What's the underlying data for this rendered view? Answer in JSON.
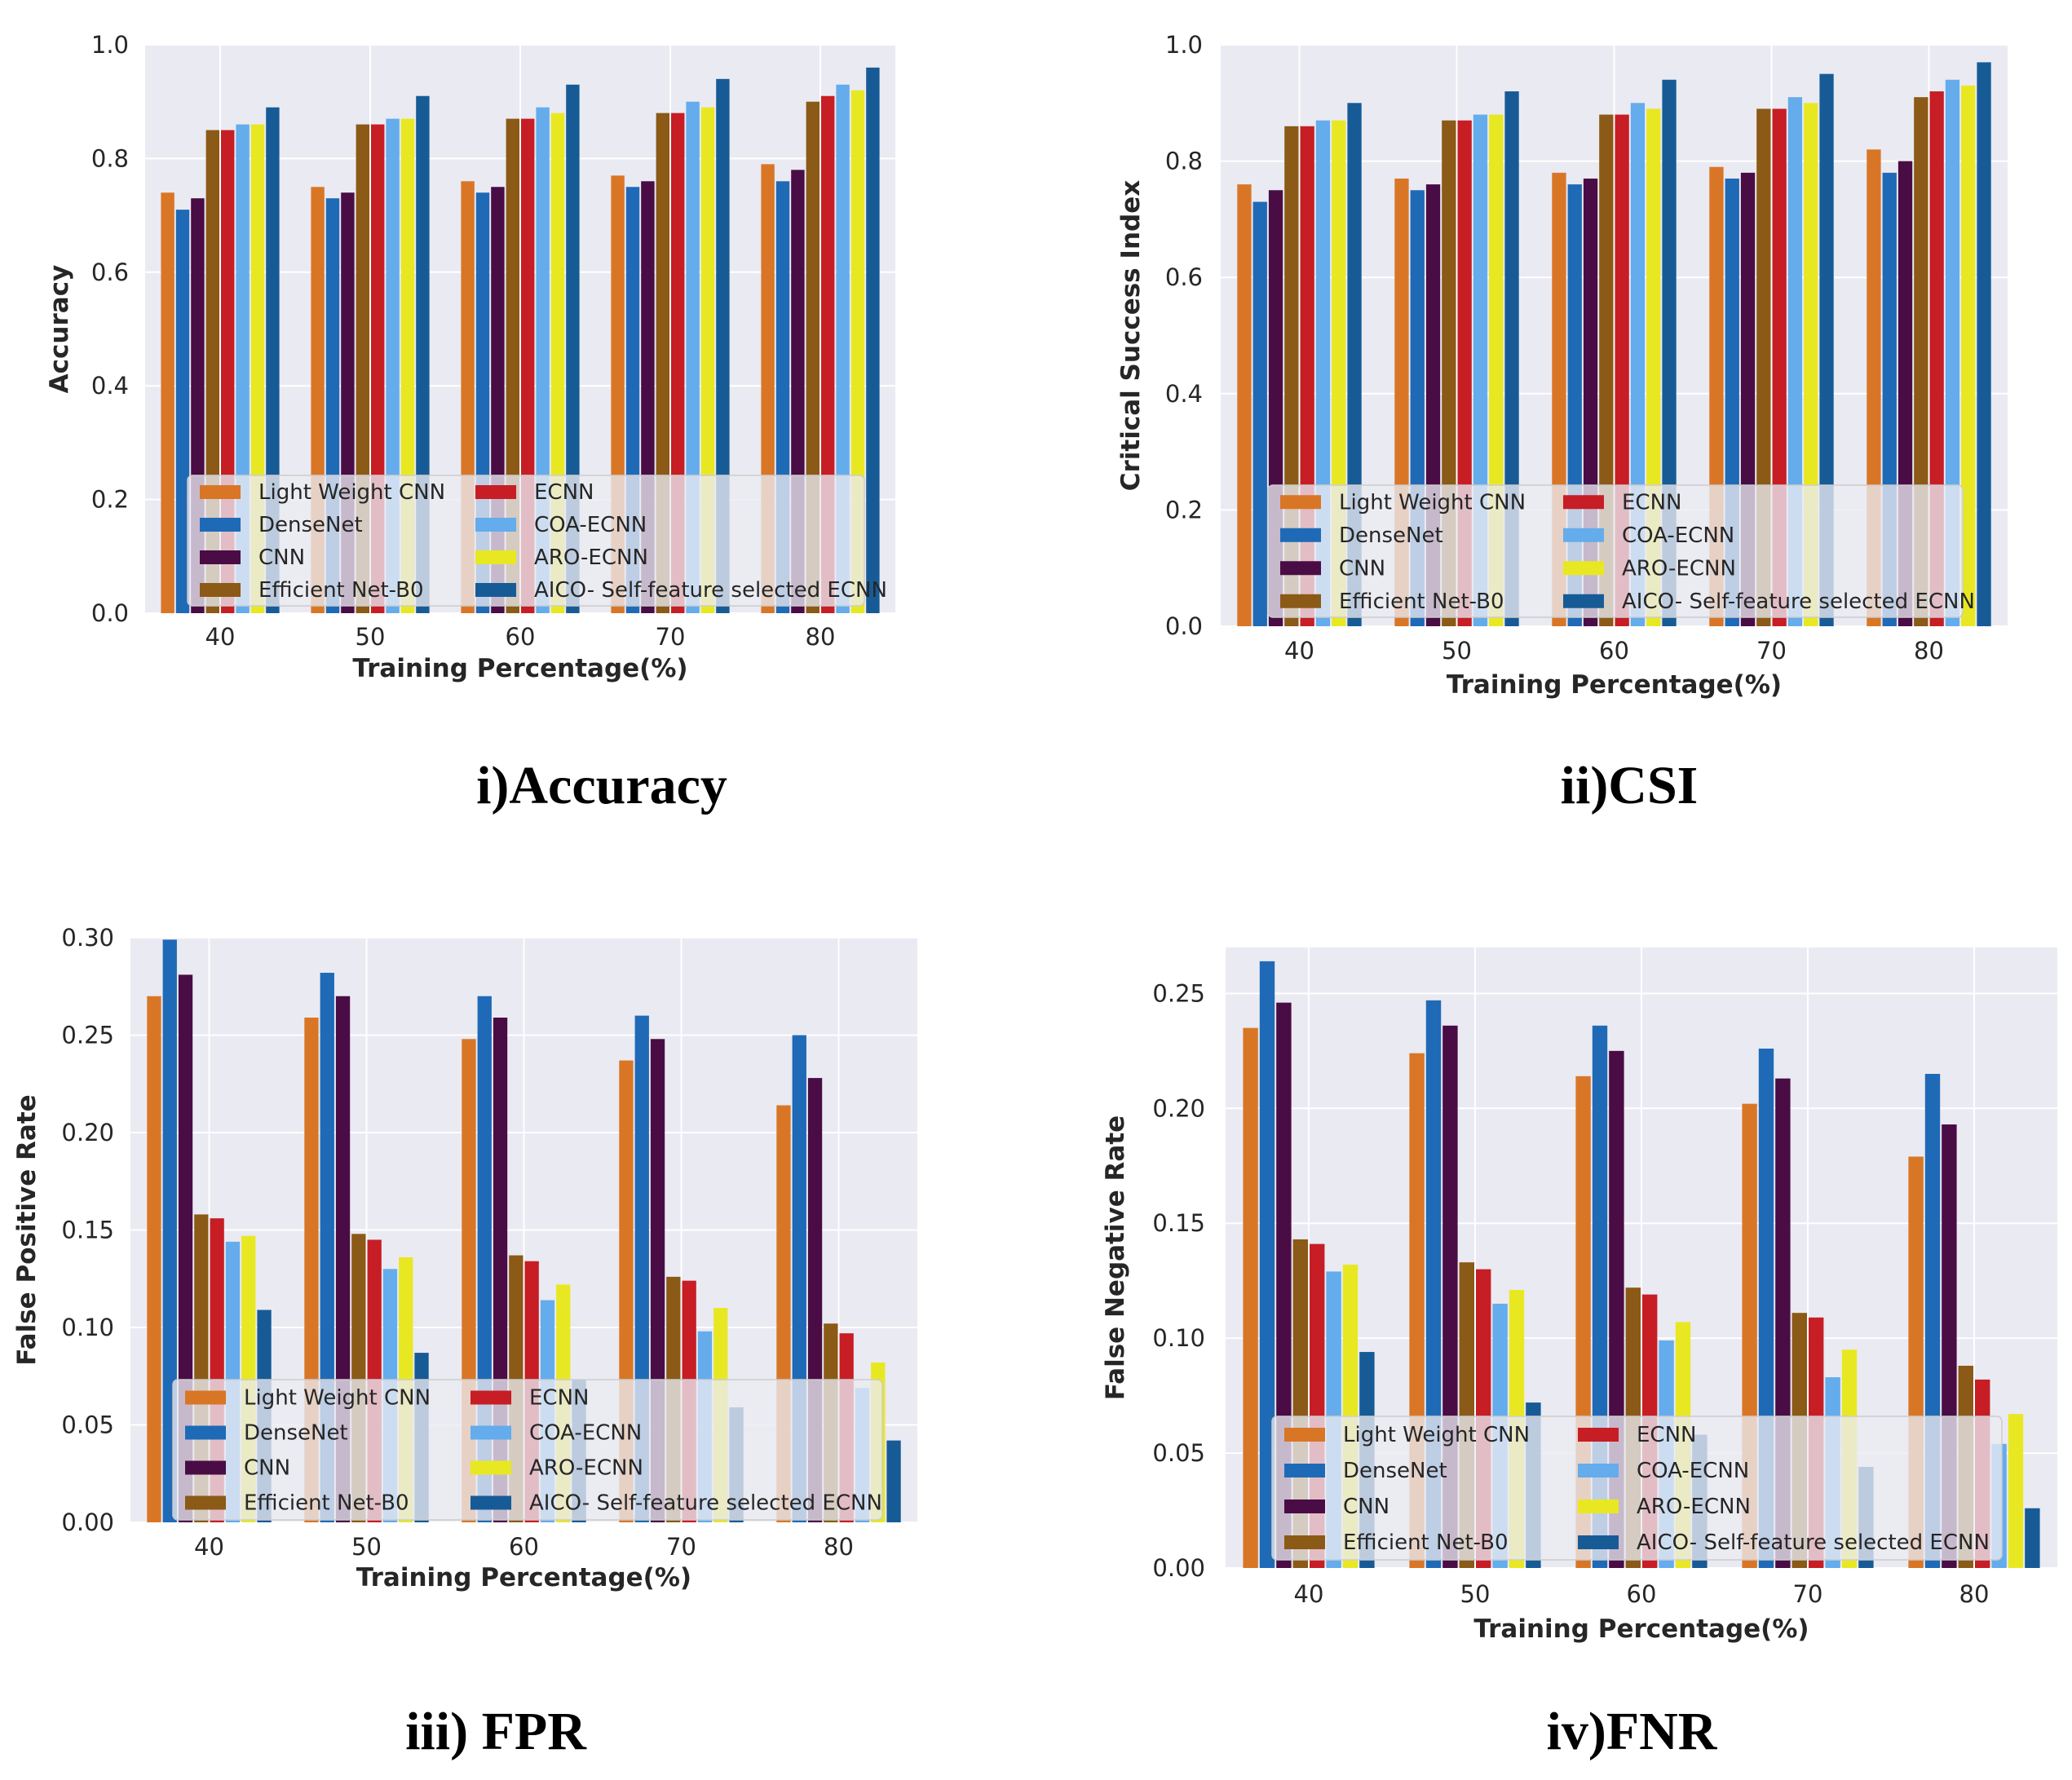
{
  "colors": {
    "background": "#ffffff",
    "plot_background": "#eaeaf2",
    "grid": "#ffffff",
    "text": "#262626"
  },
  "legend": {
    "entries": [
      "Light Weight CNN",
      "DenseNet",
      "CNN",
      "Efficient Net-B0",
      "ECNN",
      "COA-ECNN",
      "ARO-ECNN",
      "AICO- Self-feature selected ECNN"
    ]
  },
  "chart_data": [
    {
      "type": "bar",
      "caption": "i)Accuracy",
      "xlabel": "Training Percentage(%)",
      "ylabel": "Accuracy",
      "categories": [
        "40",
        "50",
        "60",
        "70",
        "80"
      ],
      "ylim": [
        0,
        1.0
      ],
      "yticks": [
        "0.0",
        "0.2",
        "0.4",
        "0.6",
        "0.8",
        "1.0"
      ],
      "ytick_values": [
        0,
        0.2,
        0.4,
        0.6,
        0.8,
        1.0
      ],
      "grid": true,
      "legend_position": "lower center",
      "series": [
        {
          "name": "Light Weight CNN",
          "color": "#d97626",
          "values": [
            0.74,
            0.75,
            0.76,
            0.77,
            0.79
          ]
        },
        {
          "name": "DenseNet",
          "color": "#1f6ab7",
          "values": [
            0.71,
            0.73,
            0.74,
            0.75,
            0.76
          ]
        },
        {
          "name": "CNN",
          "color": "#4a0c45",
          "values": [
            0.73,
            0.74,
            0.75,
            0.76,
            0.78
          ]
        },
        {
          "name": "Efficient Net-B0",
          "color": "#8b5a16",
          "values": [
            0.85,
            0.86,
            0.87,
            0.88,
            0.9
          ]
        },
        {
          "name": "ECNN",
          "color": "#c71d25",
          "values": [
            0.85,
            0.86,
            0.87,
            0.88,
            0.91
          ]
        },
        {
          "name": "COA-ECNN",
          "color": "#64acec",
          "values": [
            0.86,
            0.87,
            0.89,
            0.9,
            0.93
          ]
        },
        {
          "name": "ARO-ECNN",
          "color": "#e8e822",
          "values": [
            0.86,
            0.87,
            0.88,
            0.89,
            0.92
          ]
        },
        {
          "name": "AICO- Self-feature selected ECNN",
          "color": "#175b96",
          "values": [
            0.89,
            0.91,
            0.93,
            0.94,
            0.96
          ]
        }
      ]
    },
    {
      "type": "bar",
      "caption": "ii)CSI",
      "xlabel": "Training Percentage(%)",
      "ylabel": "Critical Success Index",
      "categories": [
        "40",
        "50",
        "60",
        "70",
        "80"
      ],
      "ylim": [
        0,
        1.0
      ],
      "yticks": [
        "0.0",
        "0.2",
        "0.4",
        "0.6",
        "0.8",
        "1.0"
      ],
      "ytick_values": [
        0,
        0.2,
        0.4,
        0.6,
        0.8,
        1.0
      ],
      "grid": true,
      "legend_position": "lower center",
      "series": [
        {
          "name": "Light Weight CNN",
          "color": "#d97626",
          "values": [
            0.76,
            0.77,
            0.78,
            0.79,
            0.82
          ]
        },
        {
          "name": "DenseNet",
          "color": "#1f6ab7",
          "values": [
            0.73,
            0.75,
            0.76,
            0.77,
            0.78
          ]
        },
        {
          "name": "CNN",
          "color": "#4a0c45",
          "values": [
            0.75,
            0.76,
            0.77,
            0.78,
            0.8
          ]
        },
        {
          "name": "Efficient Net-B0",
          "color": "#8b5a16",
          "values": [
            0.86,
            0.87,
            0.88,
            0.89,
            0.91
          ]
        },
        {
          "name": "ECNN",
          "color": "#c71d25",
          "values": [
            0.86,
            0.87,
            0.88,
            0.89,
            0.92
          ]
        },
        {
          "name": "COA-ECNN",
          "color": "#64acec",
          "values": [
            0.87,
            0.88,
            0.9,
            0.91,
            0.94
          ]
        },
        {
          "name": "ARO-ECNN",
          "color": "#e8e822",
          "values": [
            0.87,
            0.88,
            0.89,
            0.9,
            0.93
          ]
        },
        {
          "name": "AICO- Self-feature selected ECNN",
          "color": "#175b96",
          "values": [
            0.9,
            0.92,
            0.94,
            0.95,
            0.97
          ]
        }
      ]
    },
    {
      "type": "bar",
      "caption": "iii) FPR",
      "xlabel": "Training Percentage(%)",
      "ylabel": "False Positive Rate",
      "categories": [
        "40",
        "50",
        "60",
        "70",
        "80"
      ],
      "ylim": [
        0,
        0.3
      ],
      "yticks": [
        "0.00",
        "0.05",
        "0.10",
        "0.15",
        "0.20",
        "0.25",
        "0.30"
      ],
      "ytick_values": [
        0,
        0.05,
        0.1,
        0.15,
        0.2,
        0.25,
        0.3
      ],
      "grid": true,
      "legend_position": "lower center",
      "series": [
        {
          "name": "Light Weight CNN",
          "color": "#d97626",
          "values": [
            0.27,
            0.259,
            0.248,
            0.237,
            0.214
          ]
        },
        {
          "name": "DenseNet",
          "color": "#1f6ab7",
          "values": [
            0.299,
            0.282,
            0.27,
            0.26,
            0.25
          ]
        },
        {
          "name": "CNN",
          "color": "#4a0c45",
          "values": [
            0.281,
            0.27,
            0.259,
            0.248,
            0.228
          ]
        },
        {
          "name": "Efficient Net-B0",
          "color": "#8b5a16",
          "values": [
            0.158,
            0.148,
            0.137,
            0.126,
            0.102
          ]
        },
        {
          "name": "ECNN",
          "color": "#c71d25",
          "values": [
            0.156,
            0.145,
            0.134,
            0.124,
            0.097
          ]
        },
        {
          "name": "COA-ECNN",
          "color": "#64acec",
          "values": [
            0.144,
            0.13,
            0.114,
            0.098,
            0.069
          ]
        },
        {
          "name": "ARO-ECNN",
          "color": "#e8e822",
          "values": [
            0.147,
            0.136,
            0.122,
            0.11,
            0.082
          ]
        },
        {
          "name": "AICO- Self-feature selected ECNN",
          "color": "#175b96",
          "values": [
            0.109,
            0.087,
            0.073,
            0.059,
            0.042
          ]
        }
      ]
    },
    {
      "type": "bar",
      "caption": "iv)FNR",
      "xlabel": "Training Percentage(%)",
      "ylabel": "False Negative Rate",
      "categories": [
        "40",
        "50",
        "60",
        "70",
        "80"
      ],
      "ylim": [
        0,
        0.27
      ],
      "yticks": [
        "0.00",
        "0.05",
        "0.10",
        "0.15",
        "0.20",
        "0.25"
      ],
      "ytick_values": [
        0,
        0.05,
        0.1,
        0.15,
        0.2,
        0.25
      ],
      "grid": true,
      "legend_position": "lower center",
      "series": [
        {
          "name": "Light Weight CNN",
          "color": "#d97626",
          "values": [
            0.235,
            0.224,
            0.214,
            0.202,
            0.179
          ]
        },
        {
          "name": "DenseNet",
          "color": "#1f6ab7",
          "values": [
            0.264,
            0.247,
            0.236,
            0.226,
            0.215
          ]
        },
        {
          "name": "CNN",
          "color": "#4a0c45",
          "values": [
            0.246,
            0.236,
            0.225,
            0.213,
            0.193
          ]
        },
        {
          "name": "Efficient Net-B0",
          "color": "#8b5a16",
          "values": [
            0.143,
            0.133,
            0.122,
            0.111,
            0.088
          ]
        },
        {
          "name": "ECNN",
          "color": "#c71d25",
          "values": [
            0.141,
            0.13,
            0.119,
            0.109,
            0.082
          ]
        },
        {
          "name": "COA-ECNN",
          "color": "#64acec",
          "values": [
            0.129,
            0.115,
            0.099,
            0.083,
            0.054
          ]
        },
        {
          "name": "ARO-ECNN",
          "color": "#e8e822",
          "values": [
            0.132,
            0.121,
            0.107,
            0.095,
            0.067
          ]
        },
        {
          "name": "AICO- Self-feature selected ECNN",
          "color": "#175b96",
          "values": [
            0.094,
            0.072,
            0.058,
            0.044,
            0.026
          ]
        }
      ]
    }
  ]
}
